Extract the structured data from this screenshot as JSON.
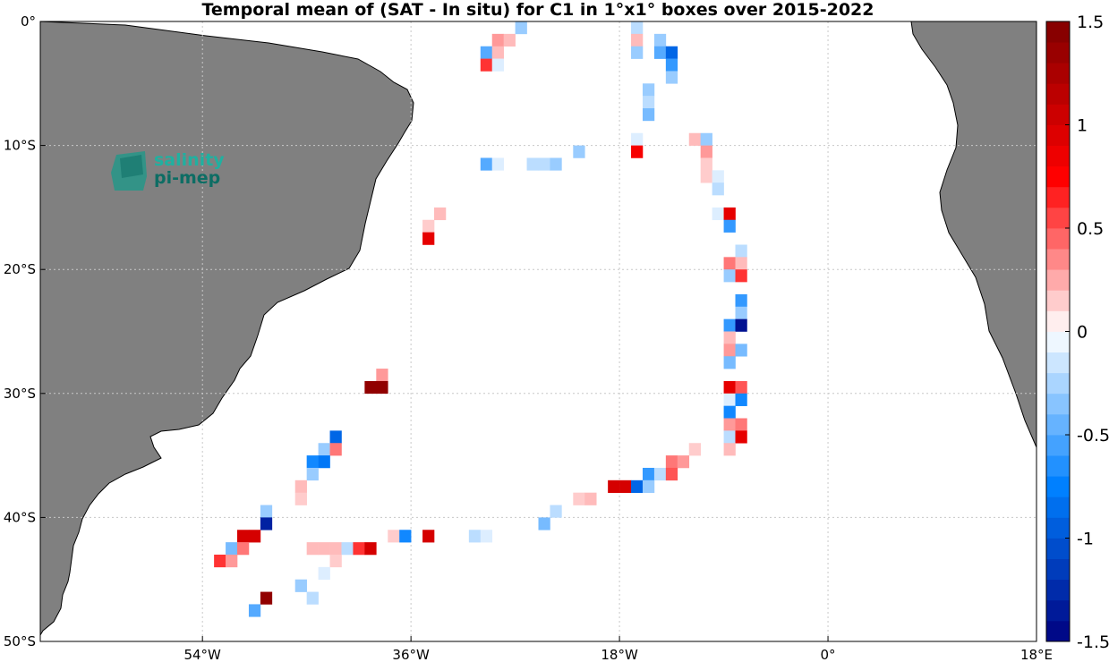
{
  "chart_data": {
    "type": "heatmap",
    "title": "Temporal mean of (SAT - In situ) for C1 in 1°x1° boxes over 2015-2022",
    "lon_range": [
      -68,
      18
    ],
    "lat_range": [
      -50,
      0
    ],
    "x_ticks": [
      {
        "value": -54,
        "label": "54°W"
      },
      {
        "value": -36,
        "label": "36°W"
      },
      {
        "value": -18,
        "label": "18°W"
      },
      {
        "value": 0,
        "label": "0°"
      },
      {
        "value": 18,
        "label": "18°E"
      }
    ],
    "y_ticks": [
      {
        "value": 0,
        "label": "0°"
      },
      {
        "value": -10,
        "label": "10°S"
      },
      {
        "value": -20,
        "label": "20°S"
      },
      {
        "value": -30,
        "label": "30°S"
      },
      {
        "value": -40,
        "label": "40°S"
      },
      {
        "value": -50,
        "label": "50°S"
      }
    ],
    "grid": true,
    "colorbar": {
      "range": [
        -1.5,
        1.5
      ],
      "levels": 30,
      "ticks": [
        {
          "value": 1.5,
          "label": "1.5"
        },
        {
          "value": 1,
          "label": "1"
        },
        {
          "value": 0.5,
          "label": "0.5"
        },
        {
          "value": 0,
          "label": "0"
        },
        {
          "value": -0.5,
          "label": "-0.5"
        },
        {
          "value": -1,
          "label": "-1"
        },
        {
          "value": -1.5,
          "label": "-1.5"
        }
      ]
    },
    "cells": [
      [
        -28.5,
        -1.5,
        0.3
      ],
      [
        -27.5,
        -1.5,
        0.2
      ],
      [
        -26.5,
        -0.5,
        -0.3
      ],
      [
        -29.5,
        -2.5,
        -0.5
      ],
      [
        -28.5,
        -2.5,
        0.2
      ],
      [
        -29.5,
        -3.5,
        0.6
      ],
      [
        -28.5,
        -3.5,
        -0.1
      ],
      [
        -16.5,
        -0.5,
        -0.2
      ],
      [
        -16.5,
        -1.5,
        0.2
      ],
      [
        -14.5,
        -1.5,
        -0.3
      ],
      [
        -16.5,
        -2.5,
        -0.3
      ],
      [
        -14.5,
        -2.5,
        -0.5
      ],
      [
        -13.5,
        -2.5,
        -0.9
      ],
      [
        -13.5,
        -3.5,
        -0.6
      ],
      [
        -13.5,
        -4.5,
        -0.3
      ],
      [
        -15.5,
        -5.5,
        -0.3
      ],
      [
        -15.5,
        -6.5,
        -0.2
      ],
      [
        -15.5,
        -7.5,
        -0.4
      ],
      [
        -16.5,
        -9.5,
        -0.1
      ],
      [
        -11.5,
        -9.5,
        0.2
      ],
      [
        -10.5,
        -9.5,
        -0.3
      ],
      [
        -21.5,
        -10.5,
        -0.3
      ],
      [
        -16.5,
        -10.5,
        0.8
      ],
      [
        -10.5,
        -10.5,
        0.3
      ],
      [
        -29.5,
        -11.5,
        -0.5
      ],
      [
        -28.5,
        -11.5,
        -0.1
      ],
      [
        -25.5,
        -11.5,
        -0.2
      ],
      [
        -24.5,
        -11.5,
        -0.2
      ],
      [
        -23.5,
        -11.5,
        -0.3
      ],
      [
        -10.5,
        -11.5,
        0.15
      ],
      [
        -10.5,
        -12.5,
        0.15
      ],
      [
        -9.5,
        -12.5,
        -0.1
      ],
      [
        -9.5,
        -13.5,
        -0.2
      ],
      [
        -33.5,
        -15.5,
        0.2
      ],
      [
        -9.5,
        -15.5,
        -0.1
      ],
      [
        -8.5,
        -15.5,
        0.9
      ],
      [
        -34.5,
        -16.5,
        0.15
      ],
      [
        -8.5,
        -16.5,
        -0.6
      ],
      [
        -34.5,
        -17.5,
        0.9
      ],
      [
        -7.5,
        -18.5,
        -0.2
      ],
      [
        -8.5,
        -19.5,
        0.4
      ],
      [
        -7.5,
        -19.5,
        0.2
      ],
      [
        -8.5,
        -20.5,
        -0.3
      ],
      [
        -7.5,
        -20.5,
        0.6
      ],
      [
        -7.5,
        -22.5,
        -0.6
      ],
      [
        -7.5,
        -23.5,
        -0.3
      ],
      [
        -8.5,
        -24.5,
        -0.6
      ],
      [
        -7.5,
        -24.5,
        -1.4
      ],
      [
        -8.5,
        -25.5,
        0.2
      ],
      [
        -8.5,
        -26.5,
        0.3
      ],
      [
        -7.5,
        -26.5,
        -0.4
      ],
      [
        -8.5,
        -27.5,
        -0.4
      ],
      [
        -38.5,
        -28.5,
        0.3
      ],
      [
        -39.5,
        -29.5,
        1.4
      ],
      [
        -38.5,
        -29.5,
        1.4
      ],
      [
        -8.5,
        -29.5,
        0.9
      ],
      [
        -7.5,
        -29.5,
        0.5
      ],
      [
        -8.5,
        -30.5,
        -0.1
      ],
      [
        -7.5,
        -30.5,
        -0.7
      ],
      [
        -8.5,
        -31.5,
        -0.7
      ],
      [
        -8.5,
        -32.5,
        0.3
      ],
      [
        -7.5,
        -32.5,
        0.4
      ],
      [
        -8.5,
        -33.5,
        -0.2
      ],
      [
        -7.5,
        -33.5,
        0.9
      ],
      [
        -42.5,
        -33.5,
        -0.9
      ],
      [
        -43.5,
        -34.5,
        -0.3
      ],
      [
        -42.5,
        -34.5,
        0.4
      ],
      [
        -11.5,
        -34.5,
        0.15
      ],
      [
        -8.5,
        -34.5,
        0.2
      ],
      [
        -44.5,
        -35.5,
        -0.7
      ],
      [
        -43.5,
        -35.5,
        -0.8
      ],
      [
        -13.5,
        -35.5,
        0.4
      ],
      [
        -12.5,
        -35.5,
        0.3
      ],
      [
        -44.5,
        -36.5,
        -0.3
      ],
      [
        -15.5,
        -36.5,
        -0.6
      ],
      [
        -14.5,
        -36.5,
        -0.2
      ],
      [
        -13.5,
        -36.5,
        0.5
      ],
      [
        -45.5,
        -37.5,
        0.2
      ],
      [
        -18.5,
        -37.5,
        1.0
      ],
      [
        -17.5,
        -37.5,
        1.0
      ],
      [
        -16.5,
        -37.5,
        -0.9
      ],
      [
        -15.5,
        -37.5,
        -0.3
      ],
      [
        -45.5,
        -38.5,
        0.15
      ],
      [
        -21.5,
        -38.5,
        0.15
      ],
      [
        -20.5,
        -38.5,
        0.2
      ],
      [
        -48.5,
        -39.5,
        -0.3
      ],
      [
        -23.5,
        -39.5,
        -0.2
      ],
      [
        -48.5,
        -40.5,
        -1.3
      ],
      [
        -24.5,
        -40.5,
        -0.4
      ],
      [
        -50.5,
        -41.5,
        1.0
      ],
      [
        -49.5,
        -41.5,
        1.0
      ],
      [
        -37.5,
        -41.5,
        0.15
      ],
      [
        -36.5,
        -41.5,
        -0.7
      ],
      [
        -34.5,
        -41.5,
        1.0
      ],
      [
        -30.5,
        -41.5,
        -0.2
      ],
      [
        -29.5,
        -41.5,
        -0.1
      ],
      [
        -51.5,
        -42.5,
        -0.4
      ],
      [
        -50.5,
        -42.5,
        0.4
      ],
      [
        -44.5,
        -42.5,
        0.2
      ],
      [
        -43.5,
        -42.5,
        0.2
      ],
      [
        -42.5,
        -42.5,
        0.2
      ],
      [
        -41.5,
        -42.5,
        -0.2
      ],
      [
        -40.5,
        -42.5,
        0.6
      ],
      [
        -39.5,
        -42.5,
        1.0
      ],
      [
        -52.5,
        -43.5,
        0.6
      ],
      [
        -51.5,
        -43.5,
        0.3
      ],
      [
        -42.5,
        -43.5,
        0.15
      ],
      [
        -43.5,
        -44.5,
        -0.1
      ],
      [
        -45.5,
        -45.5,
        -0.3
      ],
      [
        -44.5,
        -46.5,
        -0.2
      ],
      [
        -48.5,
        -46.5,
        1.4
      ],
      [
        -49.5,
        -47.5,
        -0.5
      ]
    ],
    "logo": {
      "line1": "salinity",
      "line2": "pi-mep"
    }
  }
}
